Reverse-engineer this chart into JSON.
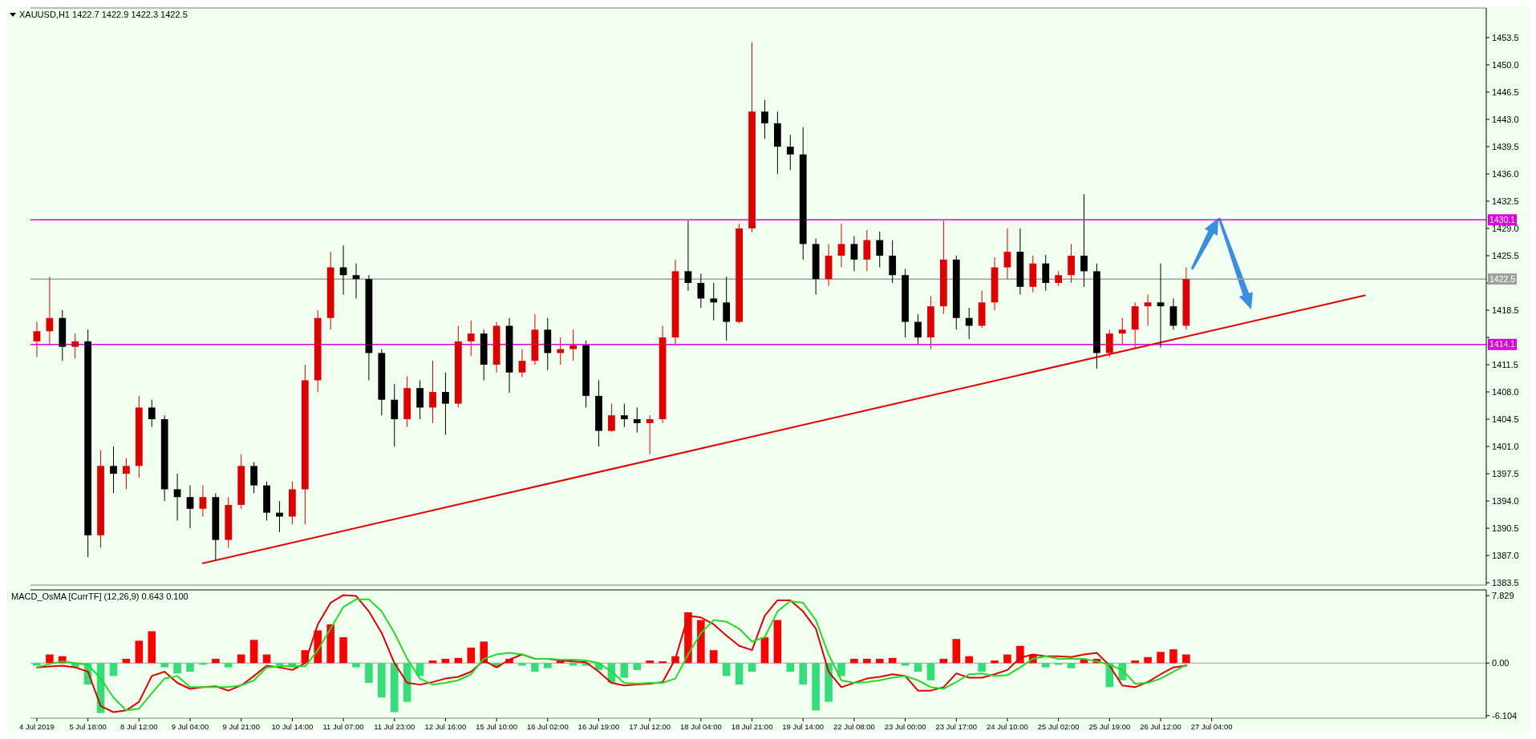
{
  "chart_data": [
    {
      "type": "candlestick",
      "title": "XAUUSD,H1  1422.7 1422.9 1422.3 1422.5",
      "categories": [
        null,
        null,
        null,
        null,
        null,
        null,
        null,
        null,
        null,
        null,
        null,
        null,
        null,
        null,
        null,
        null,
        null,
        null,
        null,
        null,
        null,
        null,
        null,
        null,
        null,
        null,
        null,
        null,
        null,
        null,
        null,
        null,
        null,
        null,
        null,
        null,
        null,
        null,
        null,
        null,
        null,
        null,
        null,
        null,
        null,
        null,
        null,
        null,
        null,
        null,
        null,
        null,
        null,
        null,
        null,
        null,
        null,
        null,
        null,
        null,
        null,
        null,
        null,
        null,
        null,
        null,
        null,
        null,
        null,
        null,
        null,
        null,
        null,
        null,
        null,
        null,
        null,
        null,
        null,
        null,
        null,
        null,
        null,
        null,
        null,
        null,
        null,
        null,
        null,
        null,
        null,
        null,
        null,
        null,
        null,
        null,
        null,
        null,
        null,
        null,
        null,
        null,
        null,
        null,
        null,
        null,
        null,
        null,
        null,
        null,
        null,
        null,
        null,
        null
      ],
      "ohlc": [
        [
          1414.5,
          1417.0,
          1412.5,
          1415.8
        ],
        [
          1415.8,
          1422.8,
          1414.0,
          1417.5
        ],
        [
          1417.5,
          1418.5,
          1412.0,
          1413.8
        ],
        [
          1413.8,
          1415.5,
          1412.3,
          1414.5
        ],
        [
          1414.5,
          1416.0,
          1386.8,
          1389.6
        ],
        [
          1389.6,
          1400.5,
          1388.0,
          1398.5
        ],
        [
          1398.5,
          1401.0,
          1395.0,
          1397.5
        ],
        [
          1397.5,
          1399.5,
          1395.5,
          1398.5
        ],
        [
          1398.5,
          1407.5,
          1397.0,
          1406.0
        ],
        [
          1406.0,
          1407.0,
          1403.5,
          1404.5
        ],
        [
          1404.5,
          1405.0,
          1394.0,
          1395.5
        ],
        [
          1395.5,
          1397.5,
          1391.5,
          1394.5
        ],
        [
          1394.5,
          1396.0,
          1390.5,
          1393.0
        ],
        [
          1393.0,
          1396.0,
          1392.0,
          1394.5
        ],
        [
          1394.5,
          1395.0,
          1386.3,
          1389.0
        ],
        [
          1389.0,
          1394.5,
          1388.0,
          1393.5
        ],
        [
          1393.5,
          1400.0,
          1393.0,
          1398.5
        ],
        [
          1398.5,
          1399.0,
          1395.0,
          1396.0
        ],
        [
          1396.0,
          1396.5,
          1391.5,
          1392.5
        ],
        [
          1392.5,
          1394.0,
          1390.0,
          1392.0
        ],
        [
          1392.0,
          1396.5,
          1391.0,
          1395.5
        ],
        [
          1395.5,
          1411.5,
          1391.0,
          1409.5
        ],
        [
          1409.5,
          1418.5,
          1408.0,
          1417.5
        ],
        [
          1417.5,
          1426.0,
          1416.0,
          1424.0
        ],
        [
          1424.0,
          1426.8,
          1420.5,
          1423.0
        ],
        [
          1423.0,
          1424.5,
          1420.0,
          1422.5
        ],
        [
          1422.5,
          1423.0,
          1409.5,
          1413.0
        ],
        [
          1413.0,
          1413.5,
          1405.0,
          1407.0
        ],
        [
          1407.0,
          1409.0,
          1401.0,
          1404.5
        ],
        [
          1404.5,
          1410.0,
          1403.5,
          1408.5
        ],
        [
          1408.5,
          1409.5,
          1404.5,
          1406.0
        ],
        [
          1406.0,
          1412.0,
          1404.0,
          1408.0
        ],
        [
          1408.0,
          1410.5,
          1402.5,
          1406.5
        ],
        [
          1406.5,
          1416.5,
          1406.0,
          1414.5
        ],
        [
          1414.5,
          1417.2,
          1412.6,
          1415.5
        ],
        [
          1415.5,
          1416.0,
          1409.5,
          1411.5
        ],
        [
          1411.5,
          1417.0,
          1410.5,
          1416.5
        ],
        [
          1416.5,
          1417.5,
          1407.9,
          1410.5
        ],
        [
          1410.5,
          1413.5,
          1409.9,
          1412.0
        ],
        [
          1412.0,
          1418.0,
          1411.5,
          1416.0
        ],
        [
          1416.0,
          1417.5,
          1410.8,
          1413.0
        ],
        [
          1413.0,
          1415.0,
          1411.5,
          1413.5
        ],
        [
          1413.5,
          1416.0,
          1412.0,
          1414.0
        ],
        [
          1414.0,
          1414.6,
          1406.0,
          1407.5
        ],
        [
          1407.5,
          1409.5,
          1401.0,
          1403.0
        ],
        [
          1403.0,
          1406.5,
          1402.9,
          1405.0
        ],
        [
          1405.0,
          1406.5,
          1403.5,
          1404.5
        ],
        [
          1404.5,
          1406.0,
          1402.8,
          1404.0
        ],
        [
          1404.0,
          1405.0,
          1400.0,
          1404.5
        ],
        [
          1404.5,
          1416.5,
          1404.0,
          1415.0
        ],
        [
          1415.0,
          1425.0,
          1414.0,
          1423.5
        ],
        [
          1423.5,
          1430.0,
          1421.0,
          1422.0
        ],
        [
          1422.0,
          1423.2,
          1418.8,
          1420.0
        ],
        [
          1420.0,
          1422.0,
          1417.2,
          1419.5
        ],
        [
          1419.5,
          1422.8,
          1414.6,
          1417.0
        ],
        [
          1417.0,
          1429.6,
          1416.8,
          1429.0
        ],
        [
          1429.0,
          1452.9,
          1428.5,
          1444.0
        ],
        [
          1444.0,
          1445.5,
          1440.5,
          1442.5
        ],
        [
          1442.5,
          1444.0,
          1436.0,
          1439.5
        ],
        [
          1439.5,
          1441.0,
          1436.5,
          1438.5
        ],
        [
          1438.5,
          1442.0,
          1425.0,
          1427.0
        ],
        [
          1427.0,
          1427.7,
          1420.5,
          1422.5
        ],
        [
          1422.5,
          1427.0,
          1421.6,
          1425.5
        ],
        [
          1425.5,
          1429.6,
          1424.0,
          1427.0
        ],
        [
          1427.0,
          1428.0,
          1423.5,
          1425.0
        ],
        [
          1425.0,
          1428.8,
          1423.5,
          1427.5
        ],
        [
          1427.5,
          1428.6,
          1424.0,
          1425.5
        ],
        [
          1425.5,
          1427.5,
          1422.0,
          1423.0
        ],
        [
          1423.0,
          1423.8,
          1415.0,
          1417.0
        ],
        [
          1417.0,
          1418.0,
          1414.1,
          1415.0
        ],
        [
          1415.0,
          1420.3,
          1413.5,
          1419.0
        ],
        [
          1419.0,
          1430.0,
          1418.0,
          1425.0
        ],
        [
          1425.0,
          1425.5,
          1416.0,
          1417.5
        ],
        [
          1417.5,
          1418.8,
          1414.8,
          1416.5
        ],
        [
          1416.5,
          1421.0,
          1416.2,
          1419.5
        ],
        [
          1419.5,
          1425.3,
          1418.5,
          1424.0
        ],
        [
          1424.0,
          1429.0,
          1422.5,
          1426.0
        ],
        [
          1426.0,
          1429.0,
          1420.5,
          1421.5
        ],
        [
          1421.5,
          1425.5,
          1420.8,
          1424.5
        ],
        [
          1424.5,
          1425.6,
          1421.0,
          1422.0
        ],
        [
          1422.0,
          1423.5,
          1421.6,
          1423.0
        ],
        [
          1423.0,
          1427.0,
          1422.0,
          1425.5
        ],
        [
          1425.5,
          1433.4,
          1421.5,
          1423.5
        ],
        [
          1423.5,
          1424.5,
          1411.0,
          1413.0
        ],
        [
          1413.0,
          1416.0,
          1412.5,
          1415.5
        ],
        [
          1415.5,
          1417.5,
          1414.0,
          1416.0
        ],
        [
          1416.0,
          1419.5,
          1413.5,
          1419.0
        ],
        [
          1419.0,
          1420.5,
          1416.5,
          1419.5
        ],
        [
          1419.5,
          1424.5,
          1413.7,
          1419.0
        ],
        [
          1419.0,
          1420.0,
          1416.0,
          1416.5
        ],
        [
          1416.5,
          1424.0,
          1416.0,
          1422.5
        ],
        null,
        null,
        null,
        null,
        null,
        null,
        null,
        null,
        null,
        null,
        null,
        null,
        null,
        null,
        null,
        null,
        null,
        null,
        null,
        null,
        null,
        null,
        null
      ],
      "series": [
        {
          "type": "line",
          "color": "#e00000",
          "values": [
            null,
            null,
            null,
            null,
            null,
            null,
            null,
            null,
            null,
            null,
            null,
            null,
            null,
            1386.0,
            null,
            null,
            null,
            null,
            null,
            null,
            null,
            null,
            null,
            null,
            null,
            null,
            null,
            null,
            null,
            null,
            null,
            null,
            null,
            null,
            null,
            null,
            null,
            null,
            null,
            null,
            null,
            null,
            null,
            null,
            null,
            null,
            null,
            null,
            null,
            null,
            null,
            null,
            null,
            null,
            null,
            null,
            null,
            null,
            null,
            null,
            null,
            null,
            null,
            null,
            null,
            null,
            null,
            null,
            null,
            null,
            null,
            null,
            null,
            null,
            null,
            null,
            null,
            null,
            null,
            null,
            null,
            null,
            null,
            null,
            null,
            null,
            null,
            null,
            null,
            null,
            null,
            null,
            null,
            null,
            null,
            null,
            null,
            null,
            null,
            null,
            null,
            null,
            null,
            null,
            1420.4,
            null,
            null,
            null,
            null,
            null,
            null,
            null,
            null,
            null
          ]
        }
      ],
      "ylim": [
        1383.2,
        1457.3
      ],
      "yticks": [
        1383.5,
        {
          "value": 1387,
          "label": "1387.0"
        },
        1390.5,
        {
          "value": 1394,
          "label": "1394.0"
        },
        1397.5,
        {
          "value": 1401,
          "label": "1401.0"
        },
        1404.5,
        {
          "value": 1408,
          "label": "1408.0"
        },
        1411.5,
        {
          "value": 1415,
          "label": null
        },
        1418.5,
        {
          "value": 1422,
          "label": null
        },
        1425.5,
        {
          "value": 1429,
          "label": "1429.0"
        },
        1432.5,
        {
          "value": 1436,
          "label": "1436.0"
        },
        1439.5,
        {
          "value": 1443,
          "label": "1443.0"
        },
        1446.5,
        {
          "value": 1450,
          "label": "1450.0"
        },
        1453.5
      ],
      "tick_labels": "y",
      "ref_lines": [
        {
          "axis": "y",
          "value": 1430.1,
          "label": "1430.1",
          "color": "#e000e0"
        },
        {
          "axis": "y",
          "value": 1414.1,
          "label": "1414.1",
          "color": "#e000e0"
        },
        {
          "axis": "y",
          "value": 1422.5,
          "label": "1422.5",
          "color": "#a0a0a0"
        }
      ]
    },
    {
      "type": "bar",
      "title": "MACD_OsMA [CurrTF] (12,26,9) 0.643 0.100",
      "categories": [
        "4 Jul 2019",
        null,
        null,
        null,
        "5 Jul 18:00",
        null,
        null,
        null,
        "8 Jul 12:00",
        null,
        null,
        null,
        "9 Jul 04:00",
        null,
        null,
        null,
        "9 Jul 21:00",
        null,
        null,
        null,
        "10 Jul 14:00",
        null,
        null,
        null,
        "11 Jul 07:00",
        null,
        null,
        null,
        "11 Jul 23:00",
        null,
        null,
        null,
        "12 Jul 16:00",
        null,
        null,
        null,
        "15 Jul 10:00",
        null,
        null,
        null,
        "16 Jul 02:00",
        null,
        null,
        null,
        "16 Jul 19:00",
        null,
        null,
        null,
        "17 Jul 12:00",
        null,
        null,
        null,
        "18 Jul 04:00",
        null,
        null,
        null,
        "18 Jul 21:00",
        null,
        null,
        null,
        "19 Jul 14:00",
        null,
        null,
        null,
        "22 Jul 08:00",
        null,
        null,
        null,
        "23 Jul 00:00",
        null,
        null,
        null,
        "23 Jul 17:00",
        null,
        null,
        null,
        "24 Jul 10:00",
        null,
        null,
        null,
        "25 Jul 02:00",
        null,
        null,
        null,
        "25 Jul 19:00",
        null,
        null,
        null,
        "26 Jul 12:00",
        null,
        null,
        null,
        "27 Jul 04:00",
        null,
        null,
        null,
        null,
        null,
        null,
        null,
        null,
        null,
        null,
        null,
        null,
        null,
        null,
        null,
        null,
        null,
        null,
        null,
        null,
        null
      ],
      "series": [
        {
          "color": "#ff0000",
          "values": [
            null,
            1.0,
            0.8,
            null,
            null,
            null,
            null,
            0.5,
            2.6,
            3.7,
            null,
            null,
            null,
            null,
            0.5,
            null,
            1.0,
            2.7,
            1.0,
            null,
            null,
            1.5,
            3.8,
            4.5,
            3.0,
            null,
            null,
            null,
            null,
            null,
            null,
            0.3,
            0.5,
            0.6,
            1.8,
            2.5,
            null,
            0.5,
            null,
            null,
            null,
            0.4,
            null,
            null,
            null,
            null,
            null,
            null,
            0.3,
            0.2,
            0.8,
            5.9,
            5.0,
            1.5,
            null,
            null,
            null,
            3.0,
            5.0,
            null,
            null,
            null,
            null,
            null,
            0.5,
            0.5,
            0.5,
            0.6,
            null,
            null,
            null,
            0.5,
            2.8,
            0.8,
            null,
            0.3,
            1.0,
            2.0,
            1.0,
            null,
            null,
            null,
            0.5,
            0.5,
            null,
            null,
            0.3,
            0.7,
            1.3,
            1.6,
            1.0,
            null,
            null,
            null,
            null,
            null,
            null,
            null,
            null,
            null,
            null,
            null,
            null,
            null,
            null,
            null,
            null,
            null,
            null,
            null,
            null,
            null,
            null,
            null
          ]
        },
        {
          "color": "#33dd77",
          "values": [
            -0.3,
            null,
            null,
            -0.5,
            -2.5,
            -5.8,
            -1.5,
            null,
            null,
            null,
            -0.5,
            -1.2,
            -1.0,
            -0.2,
            null,
            -0.5,
            null,
            null,
            null,
            -0.3,
            -0.5,
            null,
            null,
            null,
            null,
            -0.5,
            -2.3,
            -4.0,
            -5.7,
            -4.5,
            -1.5,
            null,
            null,
            null,
            null,
            null,
            -0.5,
            null,
            -0.3,
            -1.0,
            -0.6,
            null,
            -0.3,
            -0.3,
            -0.8,
            -2.3,
            -1.7,
            -0.8,
            null,
            null,
            null,
            null,
            null,
            null,
            -1.5,
            -2.5,
            -1.0,
            null,
            null,
            -1.0,
            -2.5,
            -5.5,
            -4.5,
            -1.5,
            null,
            null,
            null,
            null,
            -0.3,
            -1.0,
            -2.0,
            null,
            null,
            null,
            -1.0,
            null,
            null,
            null,
            null,
            -0.5,
            -0.2,
            -0.6,
            null,
            null,
            -2.8,
            -2.0,
            null,
            null,
            null,
            null,
            null,
            null,
            null,
            null,
            null,
            null,
            null,
            null,
            null,
            null,
            null,
            null,
            null,
            null,
            null,
            null,
            null,
            null,
            null,
            null,
            null,
            null,
            null,
            null
          ]
        },
        {
          "type": "line",
          "color": "#e00000",
          "values": [
            -0.5,
            -0.4,
            -0.3,
            -0.5,
            -1.0,
            -5.0,
            -5.7,
            -5.5,
            -4.5,
            -1.5,
            -1.0,
            -2.3,
            -3.0,
            -2.8,
            -2.7,
            -3.2,
            -2.6,
            -1.5,
            -0.3,
            -0.5,
            -0.8,
            0.0,
            4.5,
            7.0,
            7.9,
            7.8,
            6.0,
            3.5,
            0.0,
            -2.3,
            -2.5,
            -2.2,
            -1.8,
            -1.6,
            -1.0,
            0.3,
            -0.5,
            0.4,
            1.0,
            0.5,
            0.5,
            0.3,
            0.2,
            0.1,
            -1.0,
            -2.3,
            -2.6,
            -2.5,
            -2.4,
            -2.2,
            0.5,
            5.5,
            5.3,
            4.5,
            3.2,
            2.0,
            1.5,
            5.5,
            7.3,
            7.3,
            6.0,
            4.0,
            -1.0,
            -2.8,
            -2.3,
            -1.8,
            -1.6,
            -1.3,
            -1.5,
            -3.2,
            -3.2,
            -2.8,
            -1.2,
            -1.7,
            -1.7,
            -1.3,
            -0.8,
            0.6,
            1.0,
            0.8,
            0.8,
            0.7,
            1.0,
            1.2,
            -0.3,
            -2.6,
            -2.8,
            -2.2,
            -1.3,
            -0.5,
            -0.3,
            null,
            null,
            null,
            null,
            null,
            null,
            null,
            null,
            null,
            null,
            null,
            null,
            null,
            null,
            null,
            null,
            null,
            null,
            null,
            null,
            null,
            null,
            null
          ]
        },
        {
          "type": "line",
          "color": "#22dd22",
          "values": [
            -0.5,
            -0.1,
            0.2,
            0.0,
            -0.2,
            -1.8,
            -4.0,
            -5.5,
            -5.3,
            -3.5,
            -1.8,
            -1.5,
            -2.8,
            -2.8,
            -2.8,
            -2.8,
            -2.6,
            -2.0,
            -0.5,
            -0.4,
            -0.3,
            -0.4,
            1.5,
            4.0,
            6.5,
            7.4,
            7.4,
            6.0,
            3.5,
            0.5,
            -1.8,
            -2.5,
            -2.3,
            -2.0,
            -1.3,
            0.5,
            1.0,
            1.2,
            1.0,
            0.5,
            0.5,
            0.4,
            0.4,
            0.3,
            0.0,
            -1.0,
            -2.3,
            -2.4,
            -2.3,
            -2.3,
            -1.8,
            1.0,
            3.5,
            5.0,
            4.8,
            4.0,
            2.5,
            3.0,
            6.0,
            7.2,
            7.0,
            5.0,
            1.0,
            -2.0,
            -2.3,
            -2.2,
            -2.0,
            -1.7,
            -1.5,
            -2.0,
            -2.8,
            -3.0,
            -2.2,
            -1.3,
            -1.2,
            -1.5,
            -1.4,
            -0.5,
            0.5,
            0.8,
            0.5,
            0.5,
            0.5,
            0.2,
            -0.2,
            -0.8,
            -2.4,
            -2.3,
            -1.8,
            -1.0,
            -0.2,
            null,
            null,
            null,
            null,
            null,
            null,
            null,
            null,
            null,
            null,
            null,
            null,
            null,
            null,
            null,
            null,
            null,
            null,
            null,
            null,
            null,
            null,
            null
          ]
        }
      ],
      "ylim": [
        -6.4,
        8.5
      ],
      "yticks": [
        -6.104,
        {
          "value": 0,
          "label": "0.00"
        },
        7.829
      ],
      "ref_lines": [
        {
          "axis": "y",
          "value": 0,
          "color": "#a0a0a0"
        }
      ]
    }
  ]
}
